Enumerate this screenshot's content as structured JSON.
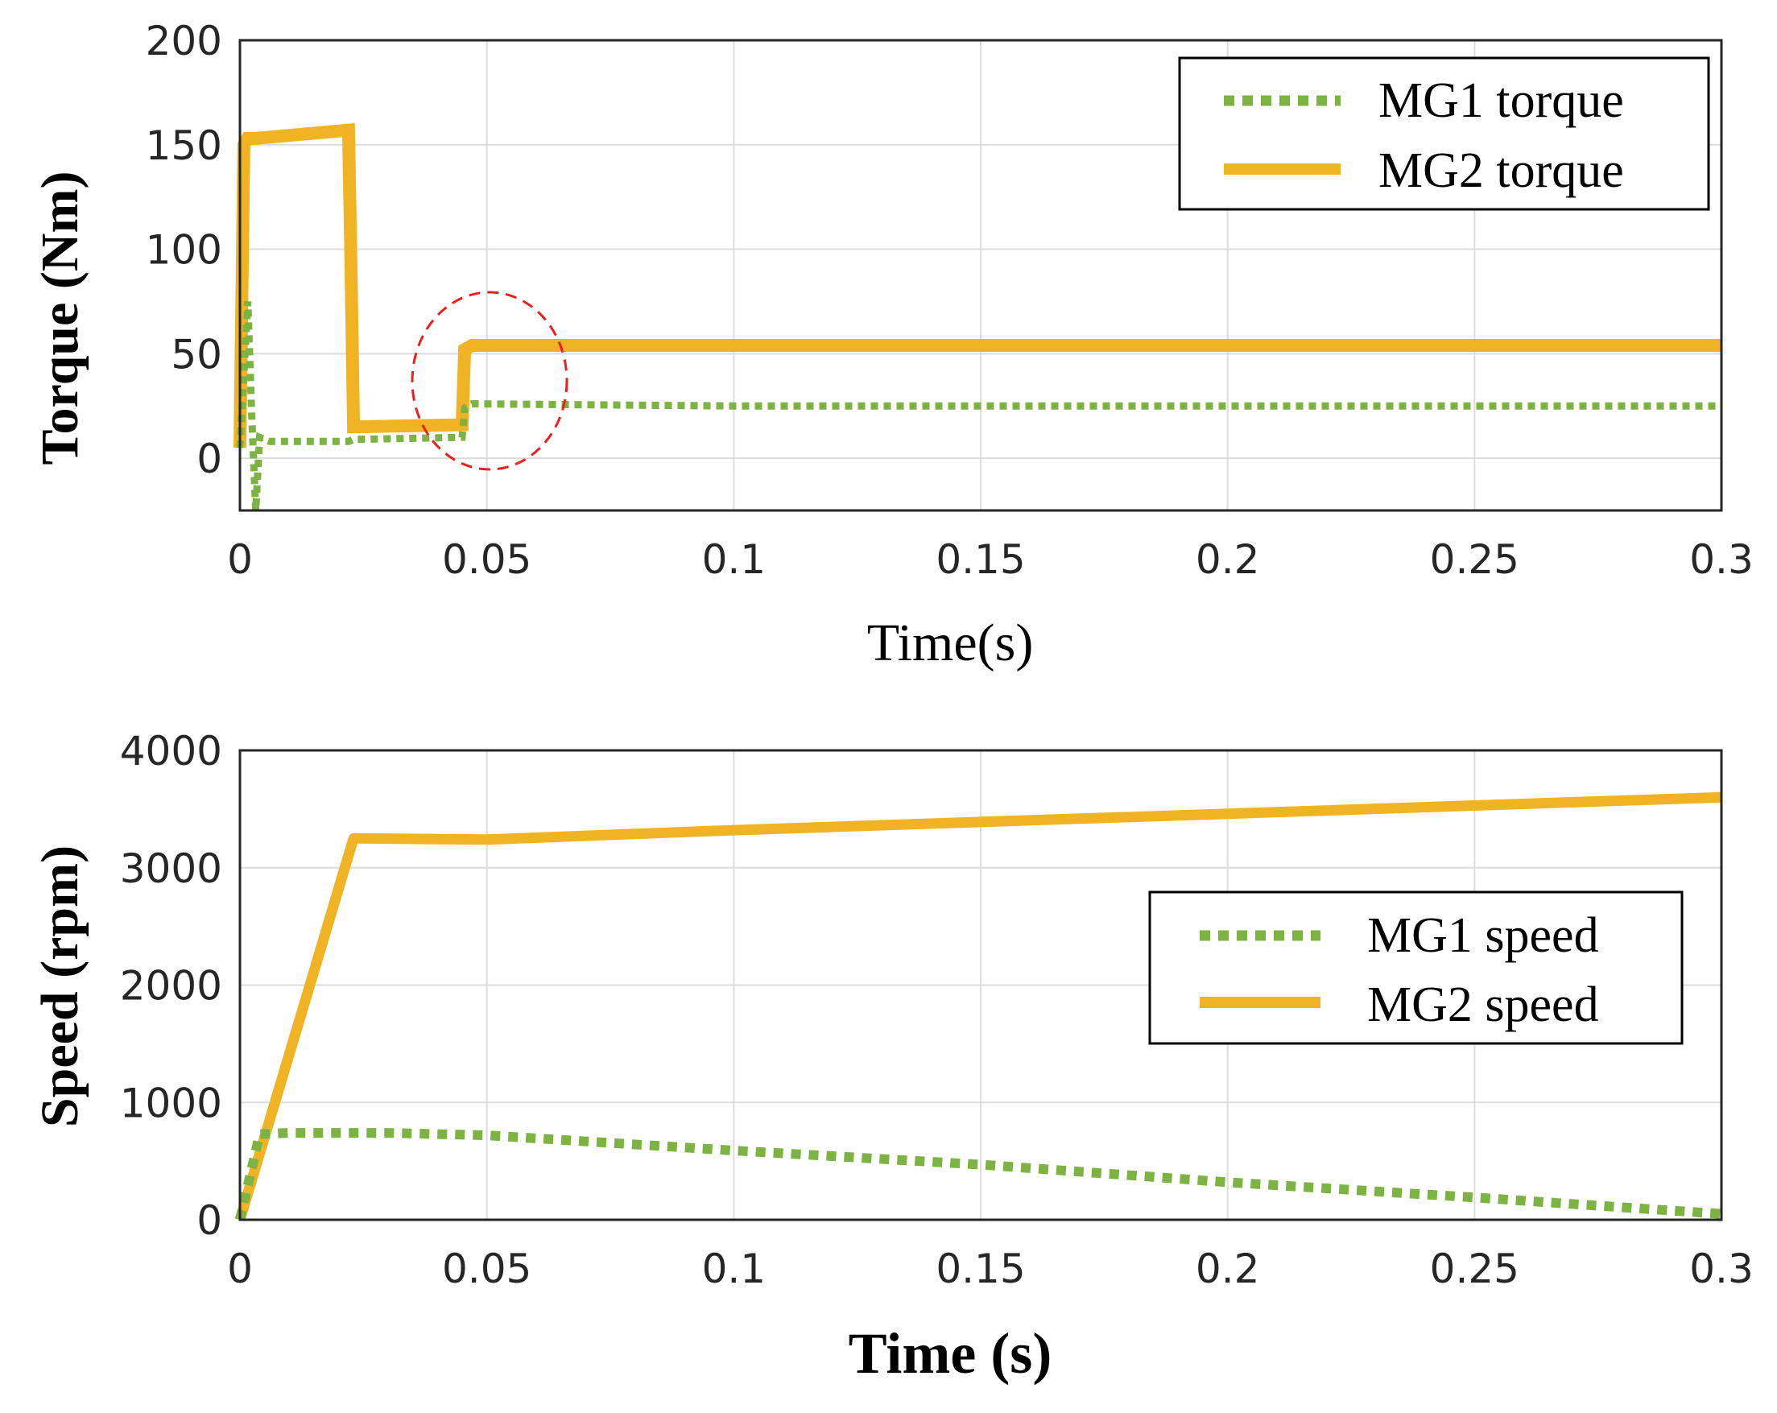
{
  "chart_data": [
    {
      "type": "line",
      "xlabel": "Time(s)",
      "ylabel": "Torque (Nm)",
      "xlim": [
        0,
        0.3
      ],
      "ylim": [
        -25,
        200
      ],
      "xticks": [
        0,
        0.05,
        0.1,
        0.15,
        0.2,
        0.25,
        0.3
      ],
      "xtick_labels": [
        "0",
        "0.05",
        "0.1",
        "0.15",
        "0.2",
        "0.25",
        "0.3"
      ],
      "yticks": [
        0,
        50,
        100,
        150,
        200
      ],
      "ytick_labels": [
        "0",
        "50",
        "100",
        "150",
        "200"
      ],
      "grid": true,
      "legend_position": "top-right",
      "annotation": "red dashed ellipse around t = 0.05 s",
      "series": [
        {
          "name": "MG1 torque",
          "style": "dotted",
          "color": "#7cb342",
          "x": [
            0,
            0.0008,
            0.0016,
            0.0024,
            0.0032,
            0.004,
            0.006,
            0.022,
            0.023,
            0.045,
            0.0455,
            0.047,
            0.1,
            0.2,
            0.3
          ],
          "y": [
            5,
            40,
            75,
            20,
            -25,
            10,
            8,
            8,
            9,
            10,
            24,
            26,
            25,
            25,
            25
          ]
        },
        {
          "name": "MG2 torque",
          "style": "solid",
          "color": "#f0b323",
          "x": [
            0,
            0.0004,
            0.0008,
            0.0015,
            0.003,
            0.022,
            0.0225,
            0.023,
            0.045,
            0.0455,
            0.047,
            0.1,
            0.2,
            0.3
          ],
          "y": [
            5,
            80,
            150,
            153,
            153,
            157,
            90,
            15,
            16,
            52,
            54,
            54,
            54,
            54
          ]
        }
      ]
    },
    {
      "type": "line",
      "xlabel": "Time (s)",
      "ylabel": "Speed (rpm)",
      "xlim": [
        0,
        0.3
      ],
      "ylim": [
        0,
        4000
      ],
      "xticks": [
        0,
        0.05,
        0.1,
        0.15,
        0.2,
        0.25,
        0.3
      ],
      "xtick_labels": [
        "0",
        "0.05",
        "0.1",
        "0.15",
        "0.2",
        "0.25",
        "0.3"
      ],
      "yticks": [
        0,
        1000,
        2000,
        3000,
        4000
      ],
      "ytick_labels": [
        "0",
        "1000",
        "2000",
        "3000",
        "4000"
      ],
      "grid": true,
      "legend_position": "right",
      "series": [
        {
          "name": "MG1 speed",
          "style": "dotted",
          "color": "#7cb342",
          "x": [
            0,
            0.004,
            0.01,
            0.03,
            0.05,
            0.1,
            0.15,
            0.2,
            0.25,
            0.3
          ],
          "y": [
            0,
            730,
            740,
            740,
            720,
            590,
            470,
            320,
            190,
            50
          ]
        },
        {
          "name": "MG2 speed",
          "style": "solid",
          "color": "#f0b323",
          "x": [
            0,
            0.023,
            0.05,
            0.1,
            0.15,
            0.2,
            0.25,
            0.3
          ],
          "y": [
            0,
            3250,
            3240,
            3320,
            3390,
            3460,
            3530,
            3600
          ]
        }
      ]
    }
  ]
}
